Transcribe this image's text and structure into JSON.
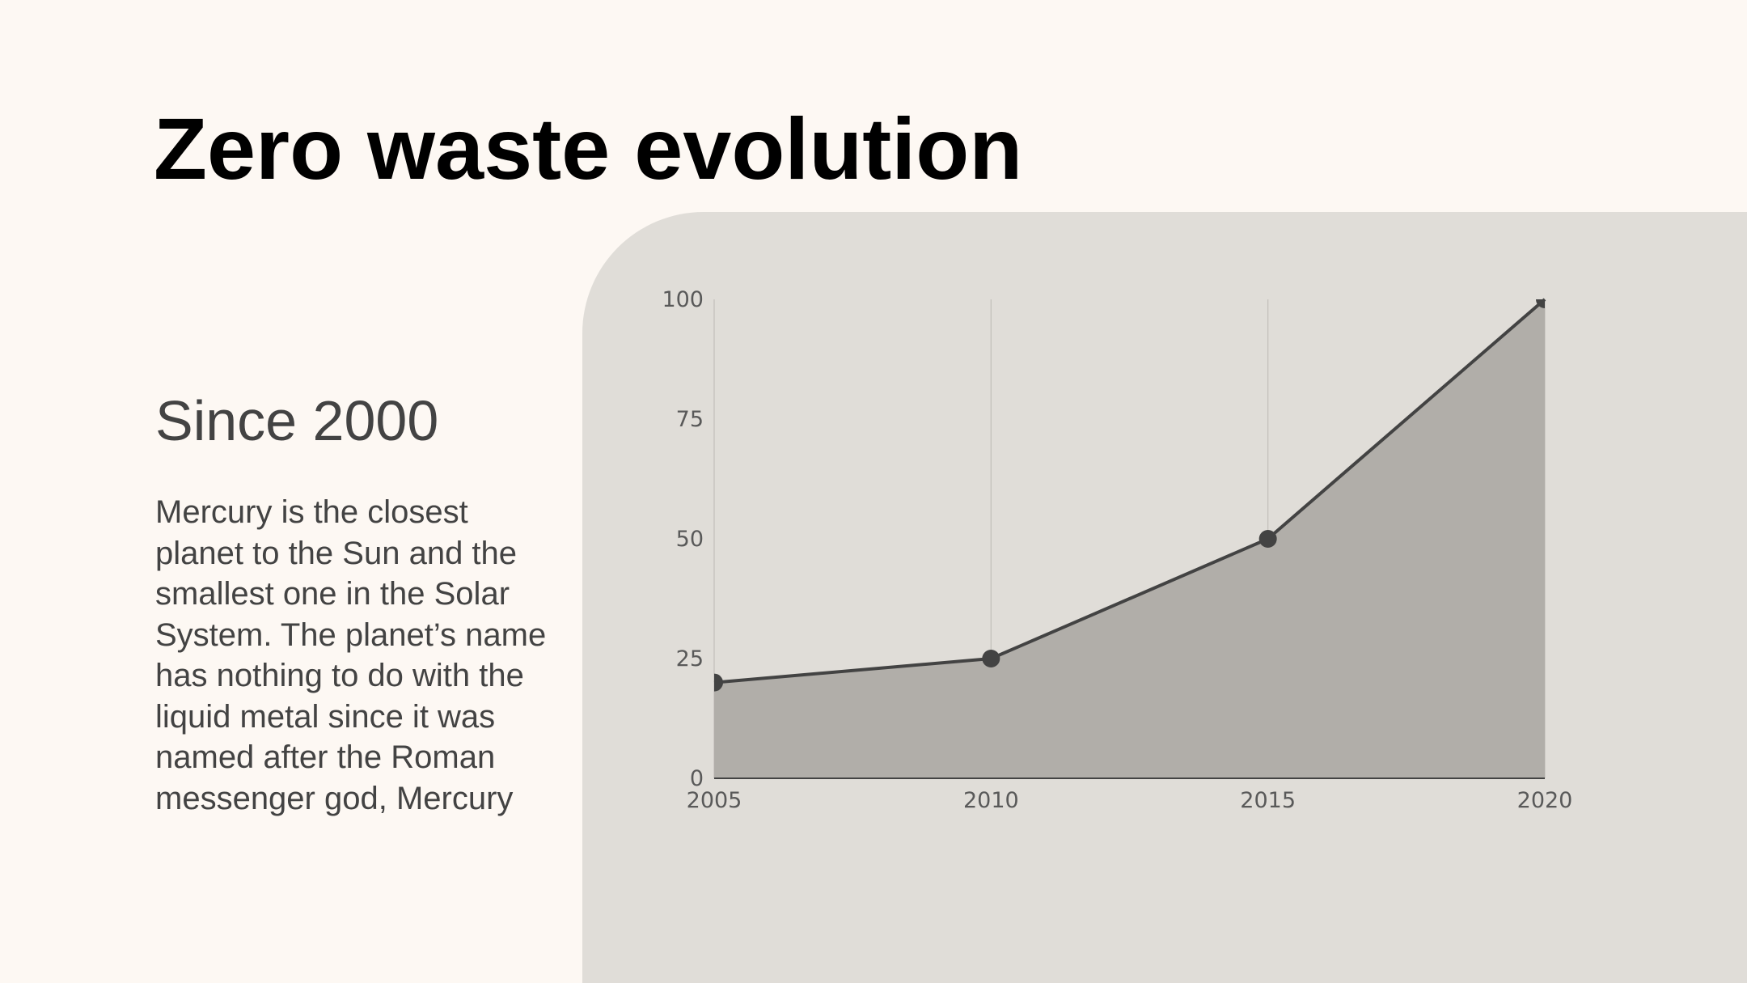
{
  "slide": {
    "title": "Zero waste evolution",
    "subtitle": "Since 2000",
    "body": "Mercury is the closest planet to the Sun and the smallest one in the Solar System.  The planet’s name has nothing to do with the liquid metal since it was named after the Roman messenger god, Mercury"
  },
  "colors": {
    "background": "#fdf8f3",
    "panel": "#e0ddd8",
    "area_fill": "#b1aea9",
    "line": "#434343",
    "marker": "#434343",
    "title": "#000000",
    "text": "#434343"
  },
  "chart_data": {
    "type": "area",
    "x": [
      2005,
      2010,
      2015,
      2020
    ],
    "x_tick_labels": [
      "2005",
      "2010",
      "2015",
      "2020"
    ],
    "series": [
      {
        "values": [
          20,
          25,
          50,
          100
        ]
      }
    ],
    "y_ticks": [
      0,
      25,
      50,
      75,
      100
    ],
    "y_tick_labels": [
      "0",
      "25",
      "50",
      "75",
      "100"
    ],
    "ylim": [
      0,
      100
    ],
    "xlim": [
      2005,
      2020
    ],
    "grid": "vertical",
    "markers": true,
    "title": "",
    "xlabel": "",
    "ylabel": ""
  }
}
